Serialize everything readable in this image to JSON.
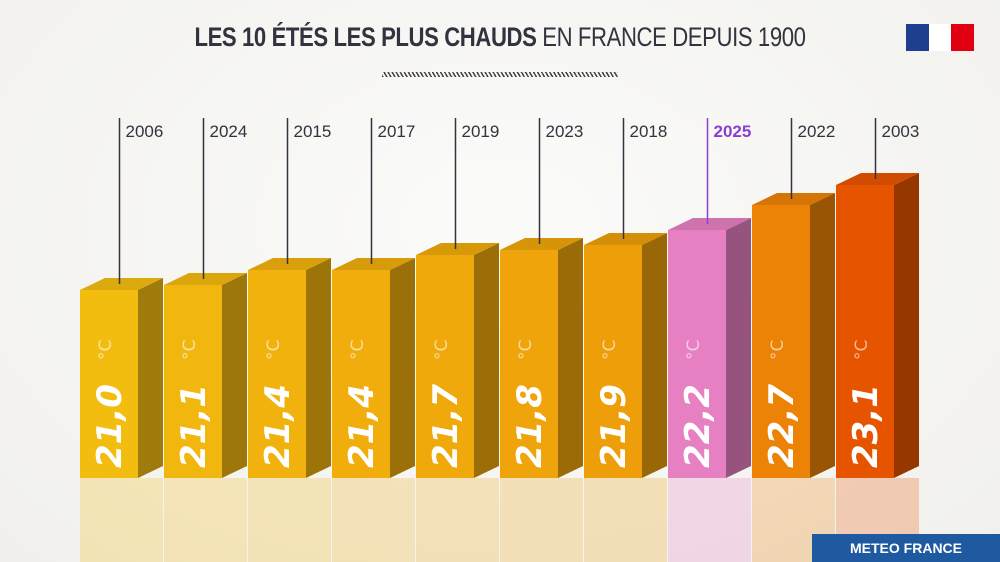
{
  "header": {
    "title_bold": "LES 10 ÉTÉS LES PLUS CHAUDS",
    "title_light": "EN FRANCE DEPUIS 1900"
  },
  "logo": {
    "name": "republique-francaise-logo",
    "colors": [
      "#1e3f8f",
      "#ffffff",
      "#e1000f"
    ]
  },
  "footer": {
    "badge": "METEO FRANCE"
  },
  "chart_data": {
    "type": "bar",
    "title": "LES 10 ÉTÉS LES PLUS CHAUDS EN FRANCE DEPUIS 1900",
    "unit": "°C",
    "categories": [
      "2006",
      "2024",
      "2015",
      "2017",
      "2019",
      "2023",
      "2018",
      "2025",
      "2022",
      "2003"
    ],
    "values": [
      21.0,
      21.1,
      21.4,
      21.4,
      21.7,
      21.8,
      21.9,
      22.2,
      22.7,
      23.1
    ],
    "value_labels": [
      "21,0",
      "21,1",
      "21,4",
      "21,4",
      "21,7",
      "21,8",
      "21,9",
      "22,2",
      "22,7",
      "23,1"
    ],
    "colors": [
      "#f3bd10",
      "#f2b70e",
      "#f1b20d",
      "#f0ad0c",
      "#efa90b",
      "#eea40a",
      "#ed9e09",
      "#e680c2",
      "#ec8206",
      "#e65400"
    ],
    "highlight": {
      "category": "2025",
      "color": "#8a3fd1"
    },
    "grid": false,
    "legend": "none"
  }
}
